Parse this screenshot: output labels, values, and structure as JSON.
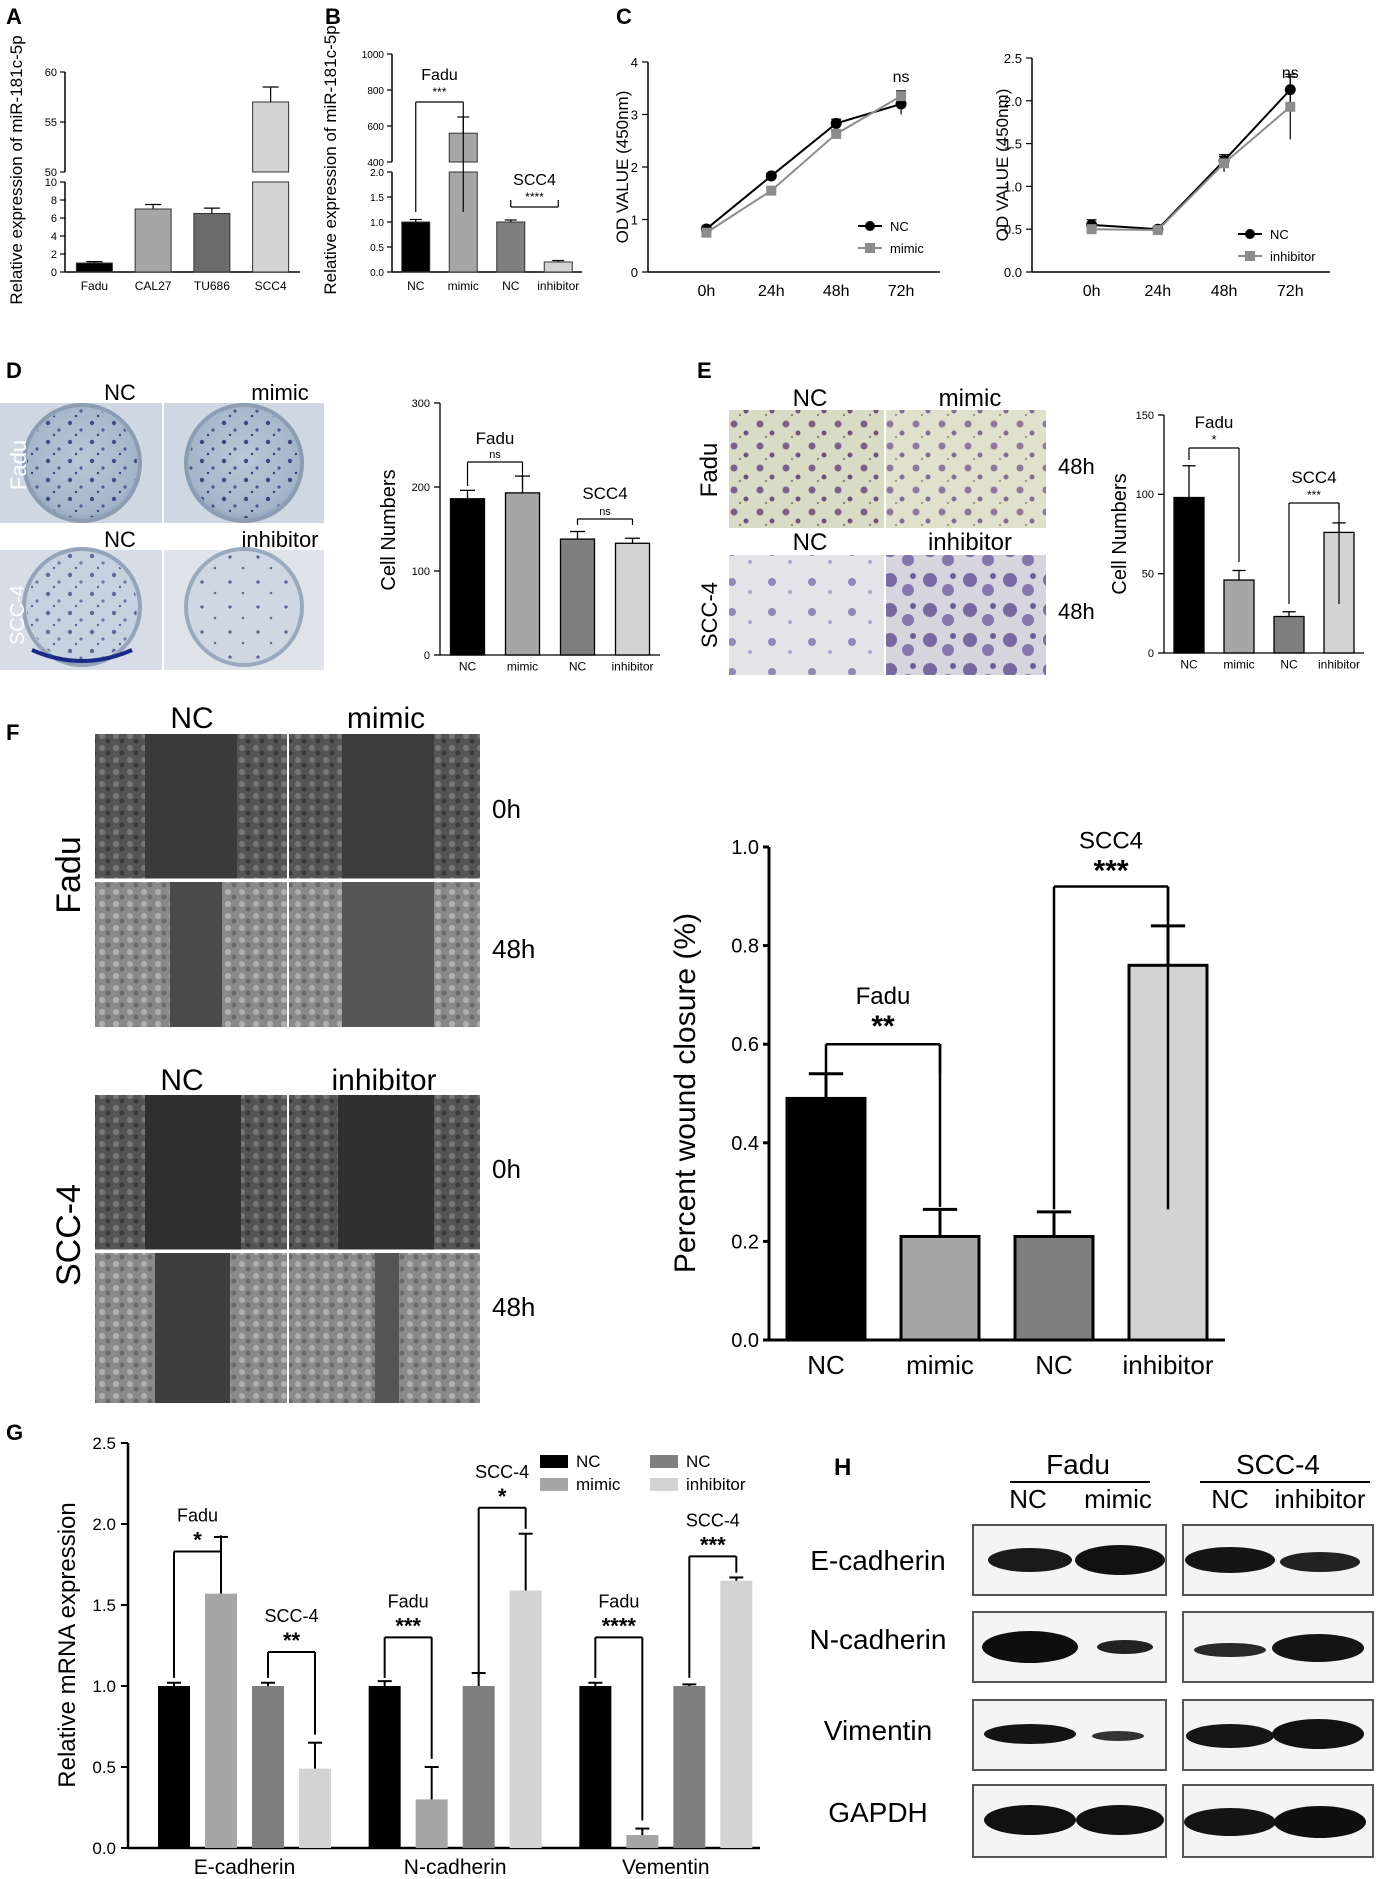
{
  "colors": {
    "black": "#000000",
    "midgray": "#7f7f7f",
    "darkgray": "#6b6b6b",
    "lightgray": "#d3d3d3",
    "gray2": "#a6a6a6",
    "line_gray": "#8c8c8c"
  },
  "chart_data": [
    {
      "panel": "A",
      "type": "bar",
      "categories": [
        "Fadu",
        "CAL27",
        "TU686",
        "SCC4"
      ],
      "values": [
        1,
        7,
        6.5,
        57
      ],
      "errors": [
        0.15,
        0.5,
        0.6,
        1.5
      ],
      "colors": [
        "#000000",
        "#a6a6a6",
        "#6b6b6b",
        "#d3d3d3"
      ],
      "ylabel": "Relative expression of miR-181c-5p",
      "yticks_low": [
        "0",
        "2",
        "4",
        "6",
        "8",
        "10"
      ],
      "yticks_high": [
        "50",
        "55",
        "60"
      ],
      "ylim_low": [
        0,
        10
      ],
      "ylim_high": [
        50,
        60
      ],
      "axis_break": true
    },
    {
      "panel": "B",
      "type": "bar",
      "categories": [
        "NC",
        "mimic",
        "NC",
        "inhibitor"
      ],
      "values": [
        1,
        560,
        1,
        0.2
      ],
      "errors": [
        0.05,
        90,
        0.04,
        0.03
      ],
      "colors": [
        "#000000",
        "#a6a6a6",
        "#7f7f7f",
        "#d3d3d3"
      ],
      "ylabel": "Relative expression of miR-181c-5p",
      "yticks_low": [
        "0.0",
        "0.5",
        "1.0",
        "1.5",
        "2.0"
      ],
      "yticks_high": [
        "400",
        "600",
        "800",
        "1000"
      ],
      "ylim_low": [
        0,
        2
      ],
      "ylim_high": [
        400,
        1000
      ],
      "axis_break": true,
      "annotations": [
        {
          "group": "Fadu",
          "sig": "***"
        },
        {
          "group": "SCC4",
          "sig": "****"
        }
      ]
    },
    {
      "panel": "C-left",
      "type": "line",
      "x": [
        "0h",
        "24h",
        "48h",
        "72h"
      ],
      "series": [
        {
          "name": "NC",
          "values": [
            0.82,
            1.83,
            2.83,
            3.2
          ],
          "errors": [
            0.04,
            0.05,
            0.08,
            0.2
          ]
        },
        {
          "name": "mimic",
          "values": [
            0.75,
            1.55,
            2.63,
            3.35
          ],
          "errors": [
            0.03,
            0.05,
            0.06,
            0.1
          ]
        }
      ],
      "ylabel": "OD VALUE (450nm)",
      "ylim": [
        0,
        4
      ],
      "yticks": [
        "0",
        "1",
        "2",
        "3",
        "4"
      ],
      "annotations": [
        {
          "at": "72h",
          "sig": "ns"
        }
      ],
      "legend": "bottom-right"
    },
    {
      "panel": "C-right",
      "type": "line",
      "x": [
        "0h",
        "24h",
        "48h",
        "72h"
      ],
      "series": [
        {
          "name": "NC",
          "values": [
            0.55,
            0.5,
            1.3,
            2.13
          ],
          "errors": [
            0.06,
            0.03,
            0.05,
            0.15
          ]
        },
        {
          "name": "inhibitor",
          "values": [
            0.5,
            0.49,
            1.27,
            1.93
          ],
          "errors": [
            0.04,
            0.03,
            0.1,
            0.38
          ]
        }
      ],
      "ylabel": "OD VALUE (450nm)",
      "ylim": [
        0,
        2.5
      ],
      "yticks": [
        "0.0",
        "0.5",
        "1.0",
        "1.5",
        "2.0",
        "2.5"
      ],
      "annotations": [
        {
          "at": "72h",
          "sig": "ns"
        }
      ],
      "legend": "bottom-right"
    },
    {
      "panel": "D",
      "type": "bar",
      "categories": [
        "NC",
        "mimic",
        "NC",
        "inhibitor"
      ],
      "values": [
        186,
        193,
        138,
        133
      ],
      "errors": [
        10,
        20,
        9,
        6
      ],
      "colors": [
        "#000000",
        "#a6a6a6",
        "#7f7f7f",
        "#d3d3d3"
      ],
      "ylabel": "Cell Numbers",
      "ylim": [
        0,
        300
      ],
      "yticks": [
        "0",
        "100",
        "200",
        "300"
      ],
      "annotations": [
        {
          "group": "",
          "sig": "ns"
        },
        {
          "group": "SCC4",
          "sig": "ns"
        }
      ]
    },
    {
      "panel": "E",
      "type": "bar",
      "categories": [
        "NC",
        "mimic",
        "NC",
        "inhibitor"
      ],
      "values": [
        98,
        46,
        23,
        76
      ],
      "errors": [
        20,
        6,
        3,
        6
      ],
      "colors": [
        "#000000",
        "#a6a6a6",
        "#7f7f7f",
        "#d3d3d3"
      ],
      "ylabel": "Cell Numbers",
      "ylim": [
        0,
        150
      ],
      "yticks": [
        "0",
        "50",
        "100",
        "150"
      ],
      "annotations": [
        {
          "group": "Fadu",
          "sig": "*"
        },
        {
          "group": "SCC4",
          "sig": "***"
        }
      ]
    },
    {
      "panel": "F",
      "type": "bar",
      "categories": [
        "NC",
        "mimic",
        "NC",
        "inhibitor"
      ],
      "values": [
        0.49,
        0.21,
        0.21,
        0.76
      ],
      "errors": [
        0.05,
        0.055,
        0.05,
        0.08
      ],
      "colors": [
        "#000000",
        "#a6a6a6",
        "#7f7f7f",
        "#d3d3d3"
      ],
      "ylabel": "Percent wound closure (%)",
      "ylim": [
        0,
        1.0
      ],
      "yticks": [
        "0.0",
        "0.2",
        "0.4",
        "0.6",
        "0.8",
        "1.0"
      ],
      "annotations": [
        {
          "group": "Fadu",
          "sig": "**"
        },
        {
          "group": "SCC4",
          "sig": "***"
        }
      ]
    },
    {
      "panel": "G",
      "type": "bar",
      "categories": [
        "E-cadherin",
        "N-cadherin",
        "Vementin"
      ],
      "series": [
        {
          "name": "NC",
          "values": [
            1.0,
            1.0,
            1.0
          ],
          "errors": [
            0.02,
            0.03,
            0.02
          ]
        },
        {
          "name": "mimic",
          "values": [
            1.57,
            0.3,
            0.08
          ],
          "errors": [
            0.35,
            0.2,
            0.04
          ]
        },
        {
          "name": "NC",
          "values": [
            1.0,
            1.0,
            1.0
          ],
          "errors": [
            0.02,
            0.08,
            0.01
          ]
        },
        {
          "name": "inhibitor",
          "values": [
            0.49,
            1.59,
            1.65
          ],
          "errors": [
            0.16,
            0.35,
            0.02
          ]
        }
      ],
      "colors": [
        "#000000",
        "#a6a6a6",
        "#7f7f7f",
        "#d3d3d3"
      ],
      "ylabel": "Relative mRNA expression",
      "ylim": [
        0,
        2.5
      ],
      "yticks": [
        "0.0",
        "0.5",
        "1.0",
        "1.5",
        "2.0",
        "2.5"
      ],
      "annotations": [
        {
          "gene": "E-cadherin",
          "group": "Fadu",
          "sig": "*"
        },
        {
          "gene": "E-cadherin",
          "group": "SCC-4",
          "sig": "**"
        },
        {
          "gene": "N-cadherin",
          "group": "Fadu",
          "sig": "***"
        },
        {
          "gene": "N-cadherin",
          "group": "SCC-4",
          "sig": "*"
        },
        {
          "gene": "Vementin",
          "group": "Fadu",
          "sig": "****"
        },
        {
          "gene": "Vementin",
          "group": "SCC-4",
          "sig": "***"
        }
      ],
      "legend": "top-right"
    }
  ],
  "panel_labels": {
    "A": "A",
    "B": "B",
    "C": "C",
    "D": "D",
    "E": "E",
    "F": "F",
    "G": "G",
    "H": "H"
  },
  "panelD": {
    "col1": "NC",
    "col2": "mimic",
    "col3": "NC",
    "col4": "inhibitor",
    "row1": "Fadu",
    "row2": "SCC-4"
  },
  "panelE": {
    "col1": "NC",
    "col2": "mimic",
    "col3": "NC",
    "col4": "inhibitor",
    "row1": "Fadu",
    "row2": "SCC-4",
    "t1": "48h",
    "t2": "48h"
  },
  "panelF": {
    "col1": "NC",
    "col2": "mimic",
    "col3": "NC",
    "col4": "inhibitor",
    "row1": "Fadu",
    "row2": "SCC-4",
    "t1": "0h",
    "t2": "48h",
    "t3": "0h",
    "t4": "48h"
  },
  "panelH": {
    "group1": "Fadu",
    "group2": "SCC-4",
    "c1": "NC",
    "c2": "mimic",
    "c3": "NC",
    "c4": "inhibitor",
    "rows": [
      "E-cadherin",
      "N-cadherin",
      "Vimentin",
      "GAPDH"
    ]
  }
}
